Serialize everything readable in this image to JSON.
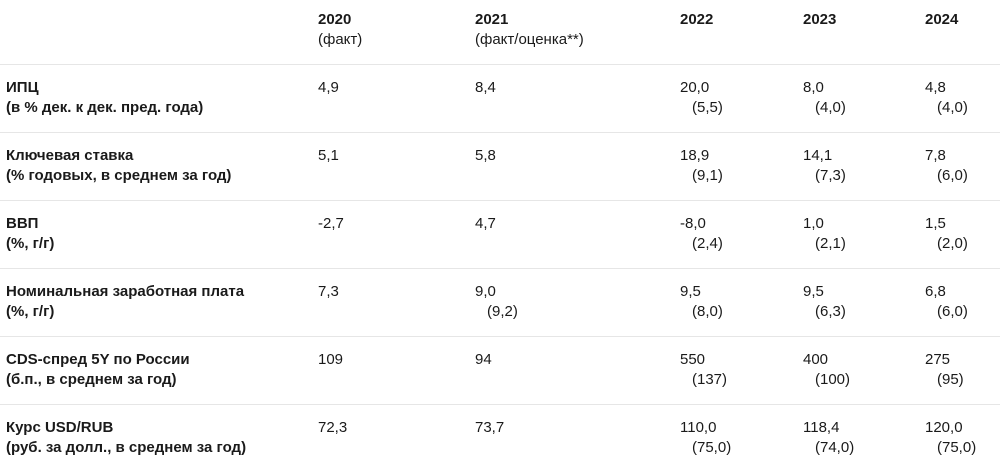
{
  "header": {
    "columns": [
      {
        "year": "2020",
        "note": "(факт)"
      },
      {
        "year": "2021",
        "note": "(факт/оценка**)"
      },
      {
        "year": "2022",
        "note": ""
      },
      {
        "year": "2023",
        "note": ""
      },
      {
        "year": "2024",
        "note": ""
      }
    ]
  },
  "rows": [
    {
      "label": "ИПЦ",
      "unit": "(в % дек. к дек. пред. года)",
      "values": [
        {
          "main": "4,9",
          "paren": ""
        },
        {
          "main": "8,4",
          "paren": ""
        },
        {
          "main": "20,0",
          "paren": "(5,5)"
        },
        {
          "main": "8,0",
          "paren": "(4,0)"
        },
        {
          "main": "4,8",
          "paren": "(4,0)"
        }
      ]
    },
    {
      "label": "Ключевая ставка",
      "unit": "(% годовых, в среднем за год)",
      "values": [
        {
          "main": "5,1",
          "paren": ""
        },
        {
          "main": "5,8",
          "paren": ""
        },
        {
          "main": "18,9",
          "paren": "(9,1)"
        },
        {
          "main": "14,1",
          "paren": "(7,3)"
        },
        {
          "main": "7,8",
          "paren": "(6,0)"
        }
      ]
    },
    {
      "label": "ВВП",
      "unit": "(%, г/г)",
      "values": [
        {
          "main": "-2,7",
          "paren": ""
        },
        {
          "main": "4,7",
          "paren": ""
        },
        {
          "main": "-8,0",
          "paren": "(2,4)"
        },
        {
          "main": "1,0",
          "paren": "(2,1)"
        },
        {
          "main": "1,5",
          "paren": "(2,0)"
        }
      ]
    },
    {
      "label": "Номинальная заработная плата",
      "unit": "(%, г/г)",
      "values": [
        {
          "main": "7,3",
          "paren": ""
        },
        {
          "main": "9,0",
          "paren": "(9,2)"
        },
        {
          "main": "9,5",
          "paren": "(8,0)"
        },
        {
          "main": "9,5",
          "paren": "(6,3)"
        },
        {
          "main": "6,8",
          "paren": "(6,0)"
        }
      ]
    },
    {
      "label": "CDS-спред 5Y по России",
      "unit": "(б.п., в среднем за год)",
      "values": [
        {
          "main": "109",
          "paren": ""
        },
        {
          "main": "94",
          "paren": ""
        },
        {
          "main": "550",
          "paren": "(137)"
        },
        {
          "main": "400",
          "paren": "(100)"
        },
        {
          "main": "275",
          "paren": "(95)"
        }
      ]
    },
    {
      "label": "Курс USD/RUB",
      "unit": "(руб. за долл., в среднем за год)",
      "values": [
        {
          "main": "72,3",
          "paren": ""
        },
        {
          "main": "73,7",
          "paren": ""
        },
        {
          "main": "110,0",
          "paren": "(75,0)"
        },
        {
          "main": "118,4",
          "paren": "(74,0)"
        },
        {
          "main": "120,0",
          "paren": "(75,0)"
        }
      ]
    }
  ]
}
